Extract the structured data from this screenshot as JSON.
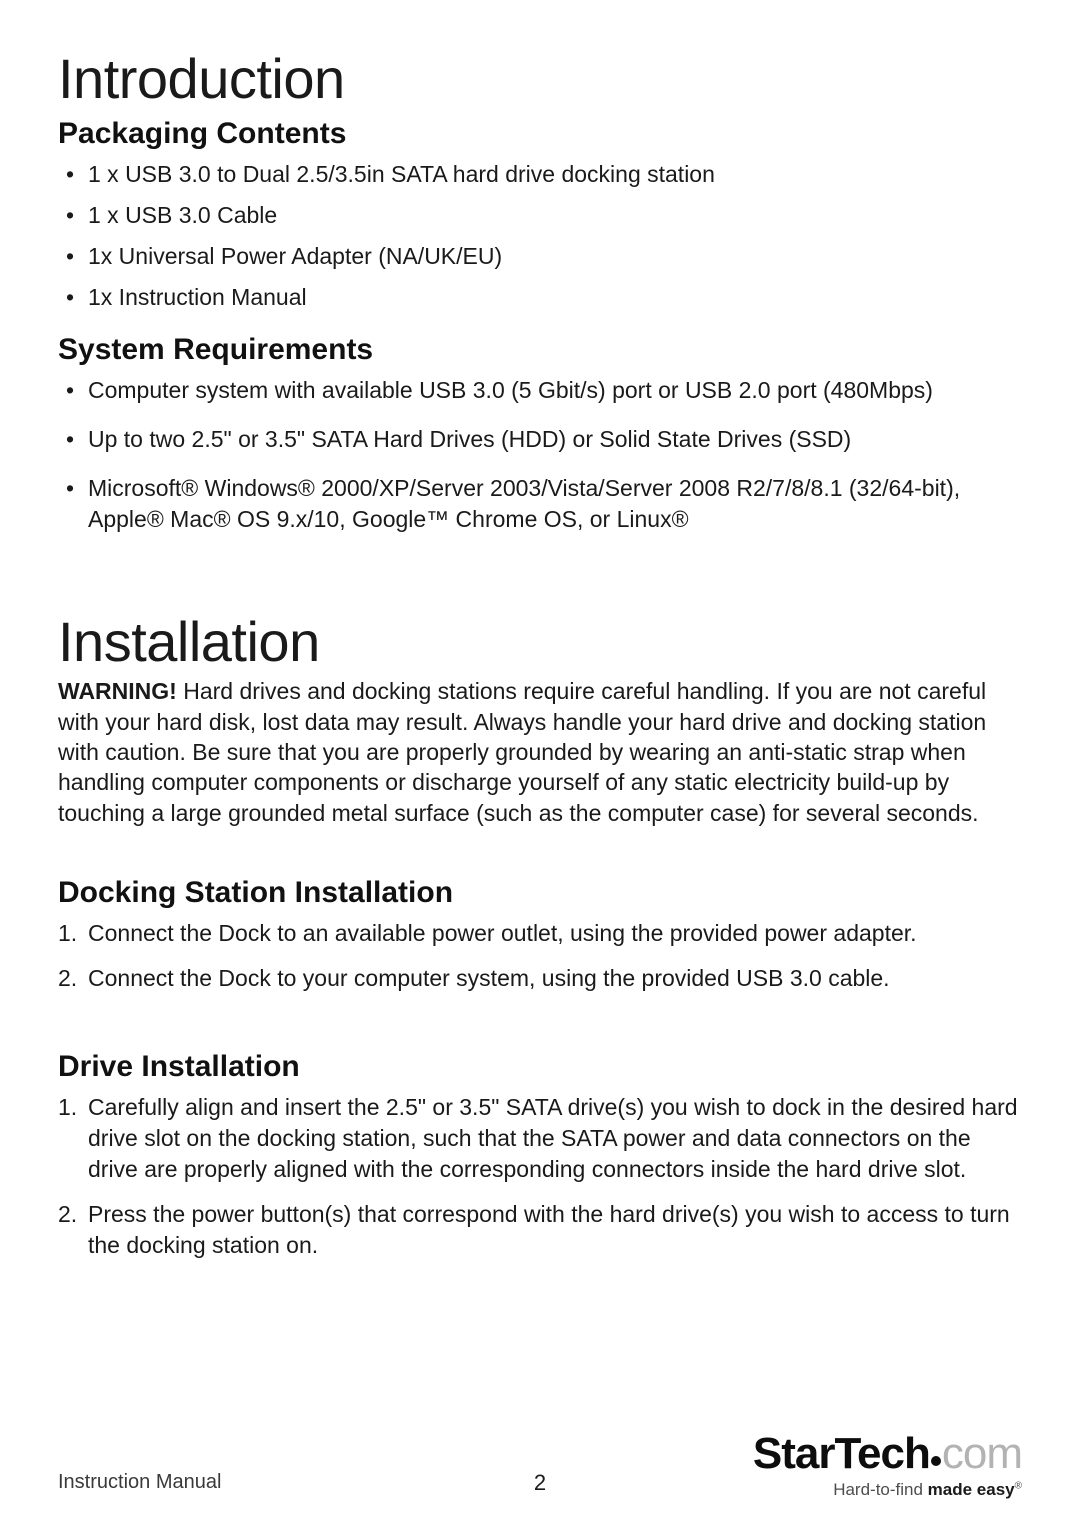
{
  "sections": {
    "intro": {
      "heading": "Introduction",
      "packaging": {
        "heading": "Packaging Contents",
        "items": [
          "1 x USB 3.0 to Dual 2.5/3.5in SATA hard drive docking station",
          "1 x USB 3.0 Cable",
          "1x Universal Power Adapter (NA/UK/EU)",
          "1x Instruction Manual"
        ]
      },
      "sysreq": {
        "heading": "System Requirements",
        "items": [
          "Computer system with available USB 3.0 (5 Gbit/s) port or USB 2.0 port (480Mbps)",
          "Up to two 2.5\" or 3.5\" SATA Hard Drives (HDD) or Solid State Drives (SSD)",
          "Microsoft® Windows® 2000/XP/Server 2003/Vista/Server 2008 R2/7/8/8.1 (32/64-bit), Apple® Mac® OS 9.x/10, Google™ Chrome OS, or Linux®"
        ]
      }
    },
    "install": {
      "heading": "Installation",
      "warning_label": "WARNING!",
      "warning_text": " Hard drives and docking stations require careful handling. If you are not careful with your hard disk, lost data may result. Always handle your hard drive and docking station with caution. Be sure that you are properly grounded by wearing an anti-static strap when handling computer components or discharge yourself of any static electricity build-up by touching a large grounded metal surface (such as the computer case) for several seconds.",
      "dock": {
        "heading": "Docking Station Installation",
        "steps": [
          "Connect the Dock to an available power outlet, using the provided power adapter.",
          "Connect the Dock to your computer system, using the provided USB 3.0 cable."
        ]
      },
      "drive": {
        "heading": "Drive Installation",
        "steps": [
          "Carefully align and insert the 2.5\" or 3.5\" SATA drive(s) you wish to dock in the desired hard drive slot on the docking station, such that the SATA power and data connectors on the drive are properly aligned with the corresponding connectors inside the hard drive slot.",
          "Press the power button(s) that correspond with the hard drive(s) you wish to access to turn the docking station on."
        ]
      }
    }
  },
  "footer": {
    "label": "Instruction Manual",
    "page": "2",
    "brand_bold": "StarTech",
    "brand_grey": "com",
    "tag_before": "Hard-to-find ",
    "tag_bold": "made easy"
  }
}
